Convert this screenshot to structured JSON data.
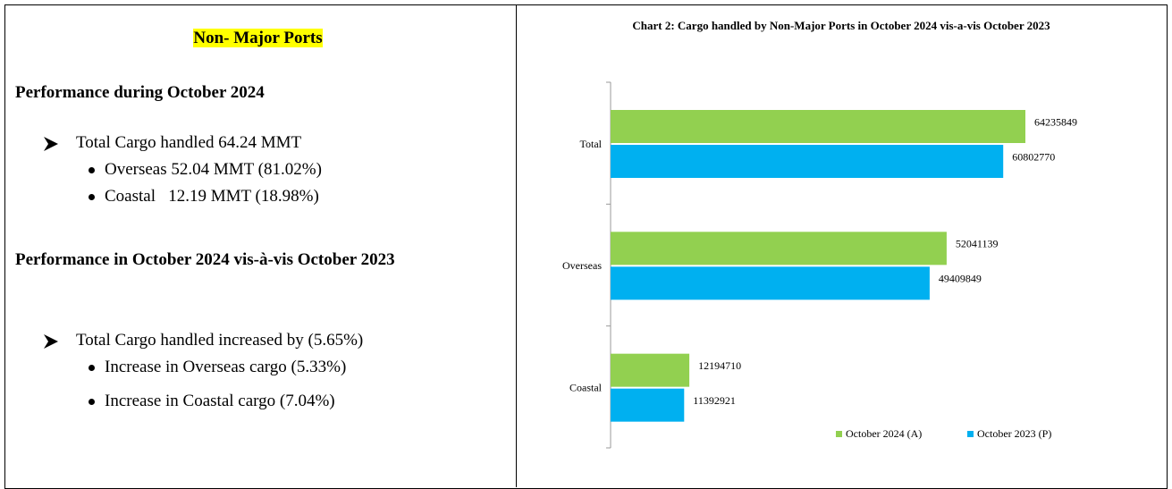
{
  "left": {
    "heading": "Non- Major Ports",
    "section1": {
      "title": "Performance during October 2024",
      "main": "Total Cargo handled 64.24 MMT",
      "items": [
        "Overseas 52.04 MMT (81.02%)",
        "Coastal   12.19 MMT (18.98%)"
      ]
    },
    "section2": {
      "title": "Performance in October 2024 vis-à-vis October 2023",
      "main": "Total Cargo handled increased by (5.65%)",
      "items": [
        "Increase in Overseas cargo (5.33%)",
        "Increase in Coastal cargo (7.04%)"
      ]
    }
  },
  "chart_data": {
    "type": "barh",
    "title": "Chart 2: Cargo handled by Non-Major Ports in October 2024 vis-a-vis October 2023",
    "categories": [
      "Total",
      "Overseas",
      "Coastal"
    ],
    "series": [
      {
        "name": "October 2024 (A)",
        "color": "#92d050",
        "values": [
          64235849,
          52041139,
          12194710
        ]
      },
      {
        "name": "October 2023 (P)",
        "color": "#00b0f0",
        "values": [
          60802770,
          49409849,
          11392921
        ]
      }
    ]
  }
}
